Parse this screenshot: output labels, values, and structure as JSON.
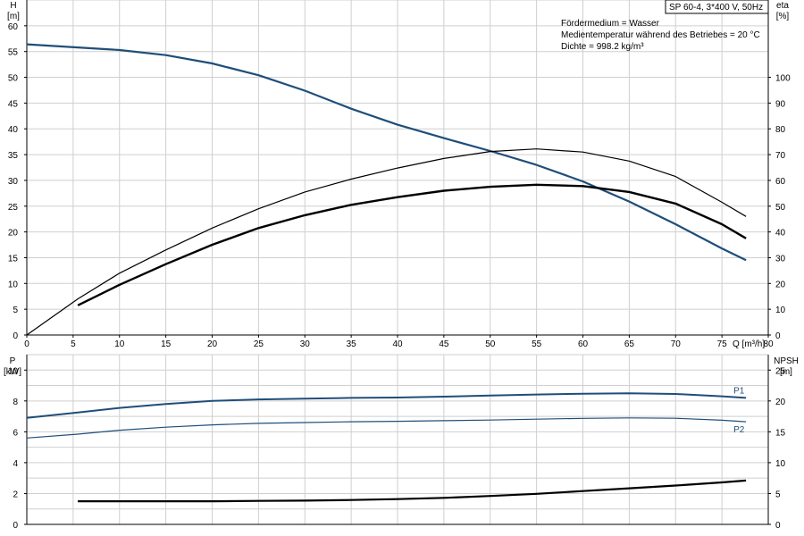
{
  "title_box": "SP 60-4, 3*400 V, 50Hz",
  "info": [
    "Fördermedium = Wasser",
    "Medientemperatur während des Betriebes = 20 °C",
    "Dichte = 998.2 kg/m³"
  ],
  "chart_data": [
    {
      "type": "line",
      "name": "pump-curves",
      "xlabel": "Q [m³/h]",
      "ylabel": [
        "H",
        "[m]"
      ],
      "y2label": [
        "eta",
        "[%]"
      ],
      "xlim": [
        0,
        80
      ],
      "ylim": [
        0,
        65
      ],
      "y2lim": [
        0,
        130
      ],
      "xticks": [
        0,
        5,
        10,
        15,
        20,
        25,
        30,
        35,
        40,
        45,
        50,
        55,
        60,
        65,
        70,
        75,
        80
      ],
      "yticks": [
        0,
        5,
        10,
        15,
        20,
        25,
        30,
        35,
        40,
        45,
        50,
        55,
        60
      ],
      "y2ticks": [
        0,
        10,
        20,
        30,
        40,
        50,
        60,
        70,
        80,
        90,
        100
      ],
      "grid": true,
      "series": [
        {
          "axis": "y",
          "color": "#1f4e79",
          "width": 2.2,
          "x": [
            0,
            5.5,
            10,
            15,
            20,
            25,
            30,
            35,
            40,
            45,
            50,
            55,
            60,
            65,
            70,
            75,
            77.6
          ],
          "y": [
            56.4,
            55.8,
            55.3,
            54.3,
            52.7,
            50.4,
            47.4,
            43.9,
            40.8,
            38.2,
            35.7,
            33.0,
            29.8,
            25.9,
            21.5,
            16.8,
            14.5
          ]
        },
        {
          "axis": "y2",
          "color": "#000000",
          "width": 2.4,
          "x": [
            5.5,
            10,
            15,
            20,
            25,
            30,
            35,
            40,
            45,
            50,
            55,
            60,
            65,
            70,
            75,
            77.6
          ],
          "y": [
            11.5,
            19.5,
            27.5,
            35.0,
            41.5,
            46.5,
            50.5,
            53.5,
            56.0,
            57.5,
            58.3,
            57.8,
            55.5,
            51.0,
            43.0,
            37.5
          ]
        },
        {
          "axis": "y2",
          "color": "#000000",
          "width": 1.2,
          "x": [
            0,
            5.5,
            10,
            15,
            20,
            25,
            30,
            35,
            40,
            45,
            50,
            55,
            60,
            65,
            70,
            75,
            77.6
          ],
          "y": [
            0,
            14.0,
            24.0,
            33.0,
            41.5,
            49.0,
            55.5,
            60.5,
            64.8,
            68.5,
            71.2,
            72.2,
            71.0,
            67.5,
            61.5,
            51.5,
            46.0
          ]
        }
      ]
    },
    {
      "type": "line",
      "name": "power-npsh",
      "ylabel": [
        "P",
        "[kW]"
      ],
      "y2label": [
        "NPSH",
        "[m]"
      ],
      "xlim": [
        0,
        80
      ],
      "ylim": [
        0,
        11
      ],
      "y2lim": [
        0,
        27.5
      ],
      "yticks": [
        0,
        2,
        4,
        6,
        8,
        10
      ],
      "y2ticks": [
        0,
        5,
        10,
        15,
        20,
        25
      ],
      "grid": true,
      "series": [
        {
          "name": "P1",
          "axis": "y",
          "color": "#1f4e79",
          "width": 2.0,
          "x": [
            0,
            5.5,
            10,
            15,
            20,
            25,
            30,
            35,
            40,
            45,
            50,
            55,
            60,
            65,
            70,
            75,
            77.6
          ],
          "y": [
            6.9,
            7.25,
            7.55,
            7.8,
            8.0,
            8.1,
            8.15,
            8.2,
            8.22,
            8.28,
            8.35,
            8.42,
            8.47,
            8.5,
            8.45,
            8.3,
            8.2
          ]
        },
        {
          "name": "P2",
          "axis": "y",
          "color": "#1f4e79",
          "width": 1.2,
          "x": [
            0,
            5.5,
            10,
            15,
            20,
            25,
            30,
            35,
            40,
            45,
            50,
            55,
            60,
            65,
            70,
            75,
            77.6
          ],
          "y": [
            5.6,
            5.85,
            6.1,
            6.3,
            6.45,
            6.55,
            6.6,
            6.65,
            6.68,
            6.72,
            6.76,
            6.82,
            6.87,
            6.9,
            6.88,
            6.75,
            6.65
          ]
        },
        {
          "axis": "y2",
          "color": "#000000",
          "width": 2.2,
          "x": [
            5.5,
            10,
            15,
            20,
            25,
            30,
            35,
            40,
            45,
            50,
            55,
            60,
            65,
            70,
            75,
            77.6
          ],
          "y": [
            3.75,
            3.75,
            3.75,
            3.75,
            3.8,
            3.85,
            3.95,
            4.1,
            4.3,
            4.6,
            4.95,
            5.4,
            5.85,
            6.3,
            6.8,
            7.1
          ]
        }
      ]
    }
  ]
}
